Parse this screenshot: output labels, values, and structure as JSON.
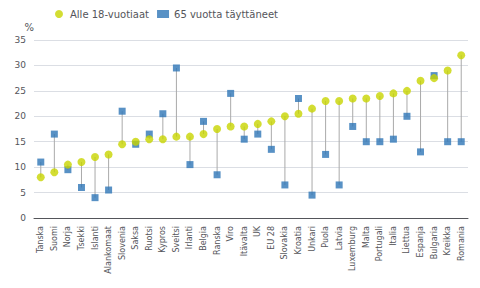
{
  "chart_data": {
    "type": "dumbbell",
    "ylabel": "%",
    "categories": [
      "Tanska",
      "Suomi",
      "Norja",
      "Tsekki",
      "Islanti",
      "Alankomaat",
      "Slovenia",
      "Saksa",
      "Ruotsi",
      "Kypros",
      "Sveitsi",
      "Irlanti",
      "Belgia",
      "Ranska",
      "Viro",
      "Itävalta",
      "UK",
      "EU 28",
      "Slovakia",
      "Kroatia",
      "Unkari",
      "Puola",
      "Latvia",
      "Luxemburg",
      "Malta",
      "Portugali",
      "Italia",
      "Liettua",
      "Espanja",
      "Bulgaria",
      "Kreikka",
      "Romania"
    ],
    "series": [
      {
        "name": "Alle 18-vuotiaat",
        "color": "#c8d400",
        "marker": "circle",
        "values": [
          8,
          9,
          10.5,
          11,
          12,
          12.5,
          14.5,
          15,
          15.5,
          15.5,
          16,
          16,
          16.5,
          17.5,
          18,
          18,
          18.5,
          19,
          20,
          20.5,
          21.5,
          23,
          23,
          23.5,
          23.5,
          24,
          24.5,
          25,
          27,
          27.5,
          29,
          32
        ]
      },
      {
        "name": "65 vuotta täyttäneet",
        "color": "#2e75b6",
        "marker": "square",
        "values": [
          11,
          16.5,
          9.5,
          6,
          4,
          5.5,
          21,
          14.5,
          16.5,
          20.5,
          29.5,
          10.5,
          19,
          8.5,
          24.5,
          15.5,
          16.5,
          13.5,
          6.5,
          23.5,
          4.5,
          12.5,
          6.5,
          18,
          15,
          15,
          15.5,
          20,
          13,
          28,
          15,
          15
        ]
      }
    ],
    "ylim": [
      0,
      35
    ],
    "yticks": [
      0,
      5,
      10,
      15,
      20,
      25,
      30,
      35
    ],
    "grid": true,
    "legend": "upper left"
  }
}
